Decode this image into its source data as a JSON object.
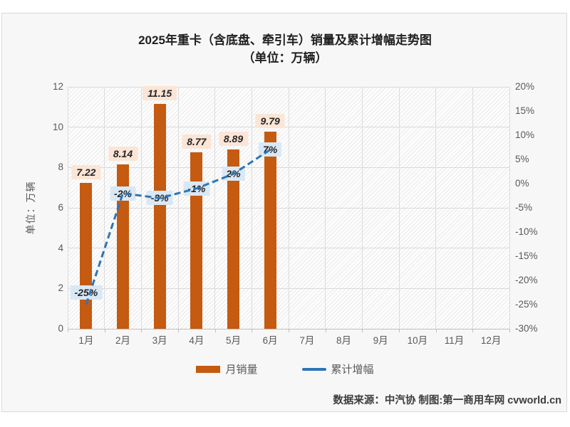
{
  "title": {
    "line1": "2025年重卡（含底盘、牵引车）销量及累计增幅走势图",
    "line2": "（单位：万辆）"
  },
  "chart_data": {
    "type": "combo_bar_line",
    "categories": [
      "1月",
      "2月",
      "3月",
      "4月",
      "5月",
      "6月",
      "7月",
      "8月",
      "9月",
      "10月",
      "11月",
      "12月"
    ],
    "series": [
      {
        "name": "月销量",
        "type": "bar",
        "values": [
          7.22,
          8.14,
          11.15,
          8.77,
          8.89,
          9.79,
          null,
          null,
          null,
          null,
          null,
          null
        ],
        "data_labels": [
          "7.22",
          "8.14",
          "11.15",
          "8.77",
          "8.89",
          "9.79"
        ],
        "color": "#C55A11",
        "label_bg": "#FBE5D6"
      },
      {
        "name": "累计增幅",
        "type": "line",
        "values": [
          -25,
          -2,
          -3,
          -1,
          2,
          7,
          null,
          null,
          null,
          null,
          null,
          null
        ],
        "data_labels": [
          "-25%",
          "-2%",
          "-3%",
          "-1%",
          "2%",
          "7%"
        ],
        "color": "#2E75B6",
        "label_bg": "#D9E8F5",
        "dashed": true,
        "label_offsets_y": [
          -17,
          0,
          0,
          0,
          0,
          0
        ]
      }
    ],
    "left_axis": {
      "title": "单位：万辆",
      "min": 0,
      "max": 12,
      "ticks": [
        0,
        2,
        4,
        6,
        8,
        10,
        12
      ]
    },
    "right_axis": {
      "min": -30,
      "max": 20,
      "ticks": [
        "20%",
        "15%",
        "10%",
        "5%",
        "0%",
        "-5%",
        "-10%",
        "-15%",
        "-20%",
        "-25%",
        "-30%"
      ]
    },
    "grid": true,
    "plot_hatch": true,
    "legend_position": "bottom"
  },
  "legend": {
    "items": [
      {
        "label": "月销量",
        "type": "bar",
        "color": "#C55A11"
      },
      {
        "label": "累计增幅",
        "type": "line",
        "color": "#2E75B6"
      }
    ]
  },
  "footer": {
    "text": "数据来源：中汽协  制图:第一商用车网 cvworld.cn"
  }
}
